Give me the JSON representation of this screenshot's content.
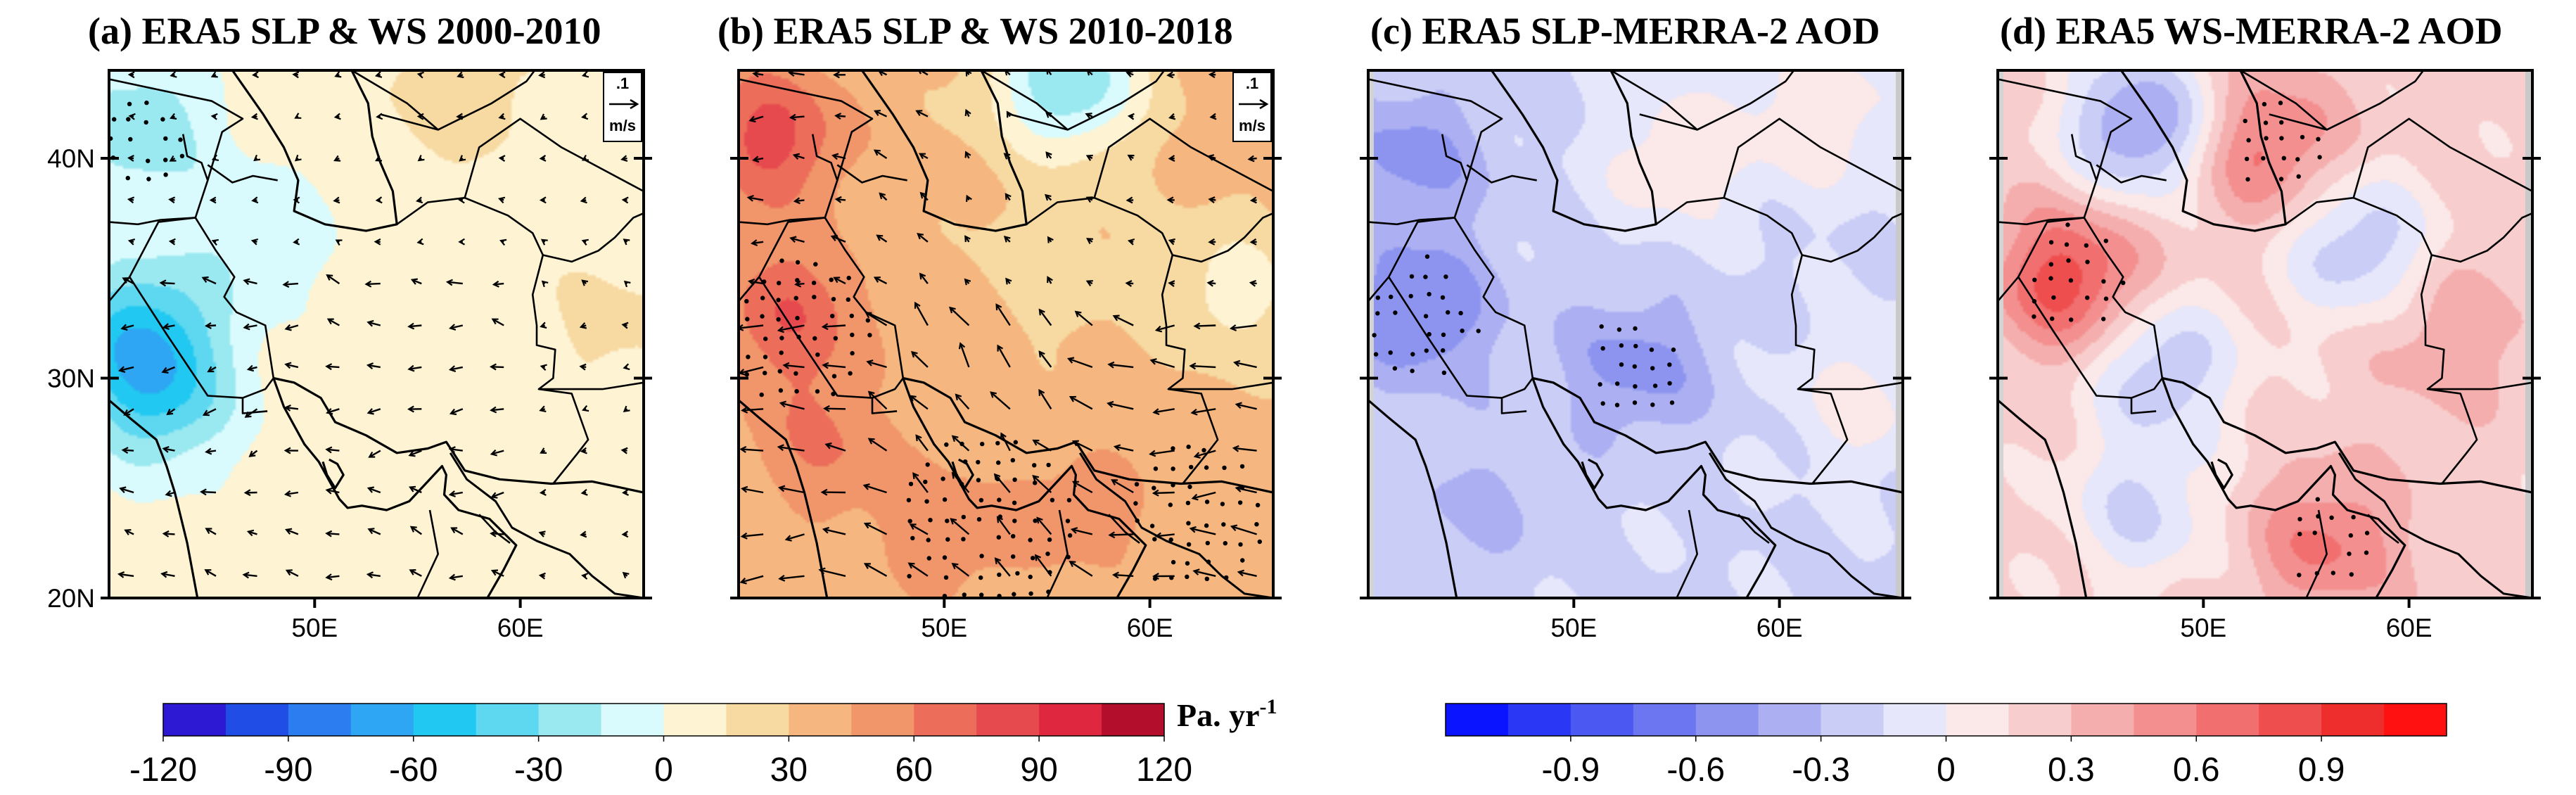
{
  "figure_colors": {
    "coast": "#000000",
    "frame": "#000000",
    "stipple": "#000000"
  },
  "chart_data": [
    {
      "panel": "a",
      "type": "heatmap",
      "title": "(a) ERA5 SLP & WS 2000-2010",
      "field": "SLP trend with wind-speed trend vectors",
      "lat_range": [
        20,
        44
      ],
      "lon_range": [
        40,
        66
      ],
      "yticks": [
        "40N",
        "30N",
        "20N"
      ],
      "xticks": [
        "50E",
        "60E"
      ],
      "background_value": 8,
      "blobs": [
        {
          "lon": 41.5,
          "lat": 41.5,
          "value": -30
        },
        {
          "lon": 41.5,
          "lat": 32.0,
          "value": -55
        },
        {
          "lon": 42.5,
          "lat": 29.0,
          "value": -40
        },
        {
          "lon": 47.0,
          "lat": 36.5,
          "value": -15
        },
        {
          "lon": 57.0,
          "lat": 43.0,
          "value": 30
        },
        {
          "lon": 64.5,
          "lat": 32.5,
          "value": 22
        }
      ],
      "vector_key_label": ".1",
      "vector_key_unit": "m/s",
      "stippled_regions": [
        {
          "lon": 41.5,
          "lat": 40.5,
          "radius_deg": 2.2
        }
      ]
    },
    {
      "panel": "b",
      "type": "heatmap",
      "title": "(b) ERA5 SLP & WS 2010-2018",
      "field": "SLP trend with wind-speed trend vectors",
      "lat_range": [
        20,
        44
      ],
      "lon_range": [
        40,
        66
      ],
      "yticks": [],
      "xticks": [
        "50E",
        "60E"
      ],
      "background_value": 40,
      "blobs": [
        {
          "lon": 41.5,
          "lat": 41.0,
          "value": 95
        },
        {
          "lon": 42.5,
          "lat": 33.0,
          "value": 85
        },
        {
          "lon": 44.0,
          "lat": 27.0,
          "value": 70
        },
        {
          "lon": 50.0,
          "lat": 23.0,
          "value": 65
        },
        {
          "lon": 57.0,
          "lat": 24.0,
          "value": 60
        },
        {
          "lon": 55.0,
          "lat": 35.0,
          "value": 25
        },
        {
          "lon": 64.0,
          "lat": 34.0,
          "value": 10
        },
        {
          "lon": 56.0,
          "lat": 43.5,
          "value": -35
        }
      ],
      "vector_key_label": ".1",
      "vector_key_unit": "m/s",
      "stippled_regions": [
        {
          "lon": 43.0,
          "lat": 32.0,
          "radius_deg": 3.5
        },
        {
          "lon": 52.0,
          "lat": 23.0,
          "radius_deg": 4.5
        },
        {
          "lon": 62.0,
          "lat": 23.5,
          "radius_deg": 3.5
        }
      ]
    },
    {
      "panel": "c",
      "type": "heatmap",
      "title": "(c) ERA5 SLP-MERRA-2 AOD",
      "field": "correlation SLP vs AOD",
      "lat_range": [
        20,
        44
      ],
      "lon_range": [
        40,
        66
      ],
      "yticks": [],
      "xticks": [
        "50E",
        "60E"
      ],
      "background_value": -0.15,
      "blobs": [
        {
          "lon": 42.5,
          "lat": 33.0,
          "value": -0.55
        },
        {
          "lon": 42.0,
          "lat": 40.0,
          "value": -0.45
        },
        {
          "lon": 53.0,
          "lat": 30.5,
          "value": -0.45
        },
        {
          "lon": 45.0,
          "lat": 24.0,
          "value": -0.3
        },
        {
          "lon": 55.0,
          "lat": 40.0,
          "value": 0.1
        },
        {
          "lon": 62.0,
          "lat": 42.0,
          "value": 0.12
        },
        {
          "lon": 64.0,
          "lat": 29.0,
          "value": 0.05
        }
      ],
      "stippled_regions": [
        {
          "lon": 42.5,
          "lat": 32.5,
          "radius_deg": 3.0
        },
        {
          "lon": 53.0,
          "lat": 30.5,
          "radius_deg": 2.5
        }
      ]
    },
    {
      "panel": "d",
      "type": "heatmap",
      "title": "(d) ERA5 WS-MERRA-2 AOD",
      "field": "correlation WS vs AOD",
      "lat_range": [
        20,
        44
      ],
      "lon_range": [
        40,
        66
      ],
      "yticks": [],
      "xticks": [
        "50E",
        "60E"
      ],
      "background_value": 0.18,
      "blobs": [
        {
          "lon": 43.5,
          "lat": 34.5,
          "value": 0.75
        },
        {
          "lon": 53.0,
          "lat": 40.5,
          "value": 0.6
        },
        {
          "lon": 47.0,
          "lat": 41.5,
          "value": -0.45
        },
        {
          "lon": 57.5,
          "lat": 36.0,
          "value": -0.25
        },
        {
          "lon": 48.0,
          "lat": 30.5,
          "value": -0.25
        },
        {
          "lon": 47.0,
          "lat": 24.0,
          "value": -0.15
        },
        {
          "lon": 56.0,
          "lat": 22.5,
          "value": 0.55
        },
        {
          "lon": 62.0,
          "lat": 32.0,
          "value": 0.4
        }
      ],
      "stippled_regions": [
        {
          "lon": 43.5,
          "lat": 34.5,
          "radius_deg": 2.6
        },
        {
          "lon": 53.5,
          "lat": 40.5,
          "radius_deg": 2.2
        },
        {
          "lon": 56.0,
          "lat": 22.5,
          "radius_deg": 2.2
        }
      ]
    }
  ],
  "colorbars": [
    {
      "name": "slp-colorbar",
      "levels": [
        "-120",
        "-90",
        "-60",
        "-30",
        "0",
        "30",
        "60",
        "90",
        "120"
      ],
      "unit": "Pa. yr-1",
      "unit_main": "Pa. yr",
      "unit_sup": "-1",
      "colors": [
        "#2d18d3",
        "#1f4de6",
        "#2c7ef0",
        "#2ea6f3",
        "#21c8f2",
        "#5ed8f0",
        "#9ae8f0",
        "#dafbfd",
        "#fef3d3",
        "#f7d9a2",
        "#f5b77f",
        "#f1956a",
        "#ec6e5a",
        "#e74a4e",
        "#e02740",
        "#b30e2c"
      ]
    },
    {
      "name": "corr-colorbar",
      "levels": [
        "-0.9",
        "-0.6",
        "-0.3",
        "0",
        "0.3",
        "0.6",
        "0.9"
      ],
      "colors": [
        "#0a14ff",
        "#2a38f6",
        "#4b58f2",
        "#6c76f0",
        "#8c94f0",
        "#acb0f2",
        "#cacdf6",
        "#e6e7fb",
        "#fbe8e8",
        "#f8cdcd",
        "#f5aeae",
        "#f38f8f",
        "#f16f6f",
        "#ef4e4e",
        "#ee2d2d",
        "#ff1111"
      ]
    }
  ]
}
